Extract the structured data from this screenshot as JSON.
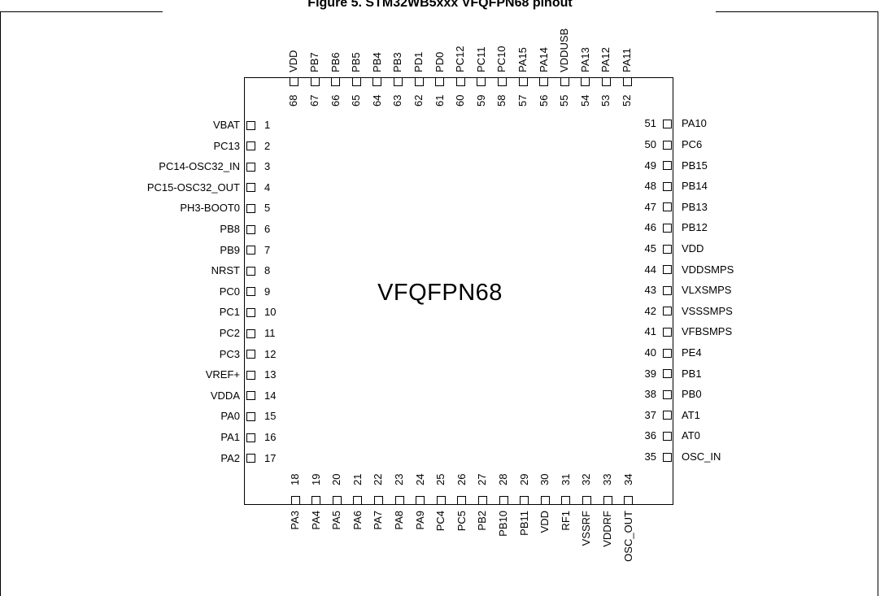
{
  "title": "Figure 5. STM32WB5xxx VFQFPN68 pinout",
  "package": "VFQFPN68",
  "pins": {
    "left": [
      {
        "num": "1",
        "name": "VBAT"
      },
      {
        "num": "2",
        "name": "PC13"
      },
      {
        "num": "3",
        "name": "PC14-OSC32_IN"
      },
      {
        "num": "4",
        "name": "PC15-OSC32_OUT"
      },
      {
        "num": "5",
        "name": "PH3-BOOT0"
      },
      {
        "num": "6",
        "name": "PB8"
      },
      {
        "num": "7",
        "name": "PB9"
      },
      {
        "num": "8",
        "name": "NRST"
      },
      {
        "num": "9",
        "name": "PC0"
      },
      {
        "num": "10",
        "name": "PC1"
      },
      {
        "num": "11",
        "name": "PC2"
      },
      {
        "num": "12",
        "name": "PC3"
      },
      {
        "num": "13",
        "name": "VREF+"
      },
      {
        "num": "14",
        "name": "VDDA"
      },
      {
        "num": "15",
        "name": "PA0"
      },
      {
        "num": "16",
        "name": "PA1"
      },
      {
        "num": "17",
        "name": "PA2"
      }
    ],
    "bottom": [
      {
        "num": "18",
        "name": "PA3"
      },
      {
        "num": "19",
        "name": "PA4"
      },
      {
        "num": "20",
        "name": "PA5"
      },
      {
        "num": "21",
        "name": "PA6"
      },
      {
        "num": "22",
        "name": "PA7"
      },
      {
        "num": "23",
        "name": "PA8"
      },
      {
        "num": "24",
        "name": "PA9"
      },
      {
        "num": "25",
        "name": "PC4"
      },
      {
        "num": "26",
        "name": "PC5"
      },
      {
        "num": "27",
        "name": "PB2"
      },
      {
        "num": "28",
        "name": "PB10"
      },
      {
        "num": "29",
        "name": "PB11"
      },
      {
        "num": "30",
        "name": "VDD"
      },
      {
        "num": "31",
        "name": "RF1"
      },
      {
        "num": "32",
        "name": "VSSRF"
      },
      {
        "num": "33",
        "name": "VDDRF"
      },
      {
        "num": "34",
        "name": "OSC_OUT"
      }
    ],
    "right": [
      {
        "num": "35",
        "name": "OSC_IN"
      },
      {
        "num": "36",
        "name": "AT0"
      },
      {
        "num": "37",
        "name": "AT1"
      },
      {
        "num": "38",
        "name": "PB0"
      },
      {
        "num": "39",
        "name": "PB1"
      },
      {
        "num": "40",
        "name": "PE4"
      },
      {
        "num": "41",
        "name": "VFBSMPS"
      },
      {
        "num": "42",
        "name": "VSSSMPS"
      },
      {
        "num": "43",
        "name": "VLXSMPS"
      },
      {
        "num": "44",
        "name": "VDDSMPS"
      },
      {
        "num": "45",
        "name": "VDD"
      },
      {
        "num": "46",
        "name": "PB12"
      },
      {
        "num": "47",
        "name": "PB13"
      },
      {
        "num": "48",
        "name": "PB14"
      },
      {
        "num": "49",
        "name": "PB15"
      },
      {
        "num": "50",
        "name": "PC6"
      },
      {
        "num": "51",
        "name": "PA10"
      }
    ],
    "top": [
      {
        "num": "52",
        "name": "PA11"
      },
      {
        "num": "53",
        "name": "PA12"
      },
      {
        "num": "54",
        "name": "PA13"
      },
      {
        "num": "55",
        "name": "VDDUSB"
      },
      {
        "num": "56",
        "name": "PA14"
      },
      {
        "num": "57",
        "name": "PA15"
      },
      {
        "num": "58",
        "name": "PC10"
      },
      {
        "num": "59",
        "name": "PC11"
      },
      {
        "num": "60",
        "name": "PC12"
      },
      {
        "num": "61",
        "name": "PD0"
      },
      {
        "num": "62",
        "name": "PD1"
      },
      {
        "num": "63",
        "name": "PB3"
      },
      {
        "num": "64",
        "name": "PB4"
      },
      {
        "num": "65",
        "name": "PB5"
      },
      {
        "num": "66",
        "name": "PB6"
      },
      {
        "num": "67",
        "name": "PB7"
      },
      {
        "num": "68",
        "name": "VDD"
      }
    ]
  }
}
